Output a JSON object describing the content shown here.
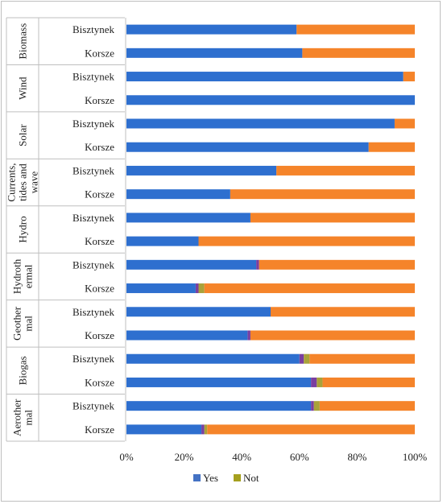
{
  "chart_data": {
    "type": "bar",
    "stacked": true,
    "orientation": "horizontal",
    "xlim": [
      0,
      100
    ],
    "x_ticks": [
      "0%",
      "20%",
      "40%",
      "60%",
      "80%",
      "100%"
    ],
    "grid": false,
    "legend_position": "bottom",
    "groups": [
      {
        "name": "Biomass",
        "name_lines": [
          "Biomass"
        ],
        "rows": [
          {
            "label": "Bisztynek",
            "yes": 59,
            "not": 0,
            "other": 41
          },
          {
            "label": "Korsze",
            "yes": 61,
            "not": 0,
            "other": 39
          }
        ]
      },
      {
        "name": "Wind",
        "name_lines": [
          "Wind"
        ],
        "rows": [
          {
            "label": "Bisztynek",
            "yes": 96,
            "not": 0,
            "other": 4
          },
          {
            "label": "Korsze",
            "yes": 100,
            "not": 0,
            "other": 0
          }
        ]
      },
      {
        "name": "Solar",
        "name_lines": [
          "Solar"
        ],
        "rows": [
          {
            "label": "Bisztynek",
            "yes": 93,
            "not": 0,
            "other": 7
          },
          {
            "label": "Korsze",
            "yes": 84,
            "not": 0,
            "other": 16
          }
        ]
      },
      {
        "name": "Currents, tides and wave",
        "name_lines": [
          "Currents,",
          "tides and",
          "wave"
        ],
        "rows": [
          {
            "label": "Bisztynek",
            "yes": 52,
            "not": 0,
            "other": 48
          },
          {
            "label": "Korsze",
            "yes": 36,
            "not": 0,
            "other": 64
          }
        ]
      },
      {
        "name": "Hydro",
        "name_lines": [
          "Hydro"
        ],
        "rows": [
          {
            "label": "Bisztynek",
            "yes": 43,
            "not": 0,
            "other": 57
          },
          {
            "label": "Korsze",
            "yes": 25,
            "not": 0,
            "other": 75
          }
        ]
      },
      {
        "name": "Hydrothermal",
        "name_lines": [
          "Hydroth",
          "ermal"
        ],
        "rows": [
          {
            "label": "Bisztynek",
            "yes": 45,
            "purple": 1,
            "not": 0,
            "other": 54
          },
          {
            "label": "Korsze",
            "yes": 24,
            "purple": 1,
            "not": 2,
            "other": 73
          }
        ]
      },
      {
        "name": "Geothermal",
        "name_lines": [
          "Geother",
          "mal"
        ],
        "rows": [
          {
            "label": "Bisztynek",
            "yes": 50,
            "purple": 0,
            "not": 0,
            "other": 50
          },
          {
            "label": "Korsze",
            "yes": 42,
            "purple": 1,
            "not": 0,
            "other": 57
          }
        ]
      },
      {
        "name": "Biogas",
        "name_lines": [
          "Biogas"
        ],
        "rows": [
          {
            "label": "Bisztynek",
            "yes": 60,
            "purple": 1.5,
            "not": 2,
            "other": 36.5
          },
          {
            "label": "Korsze",
            "yes": 64,
            "purple": 2,
            "not": 2,
            "other": 32
          }
        ]
      },
      {
        "name": "Aerothermal",
        "name_lines": [
          "Aerother",
          "mal"
        ],
        "rows": [
          {
            "label": "Bisztynek",
            "yes": 64,
            "purple": 1,
            "not": 2,
            "other": 33
          },
          {
            "label": "Korsze",
            "yes": 26,
            "purple": 1,
            "not": 1,
            "other": 72
          }
        ]
      }
    ],
    "legend": [
      {
        "name": "Yes",
        "color": "#4472c4"
      },
      {
        "name": "Not",
        "color": "#a5a01e"
      }
    ],
    "colors": {
      "yes": "#2e6fcf",
      "purple": "#7a3fa0",
      "not": "#a9a23a",
      "other": "#f5842a",
      "axis": "#bfbfbf"
    }
  }
}
